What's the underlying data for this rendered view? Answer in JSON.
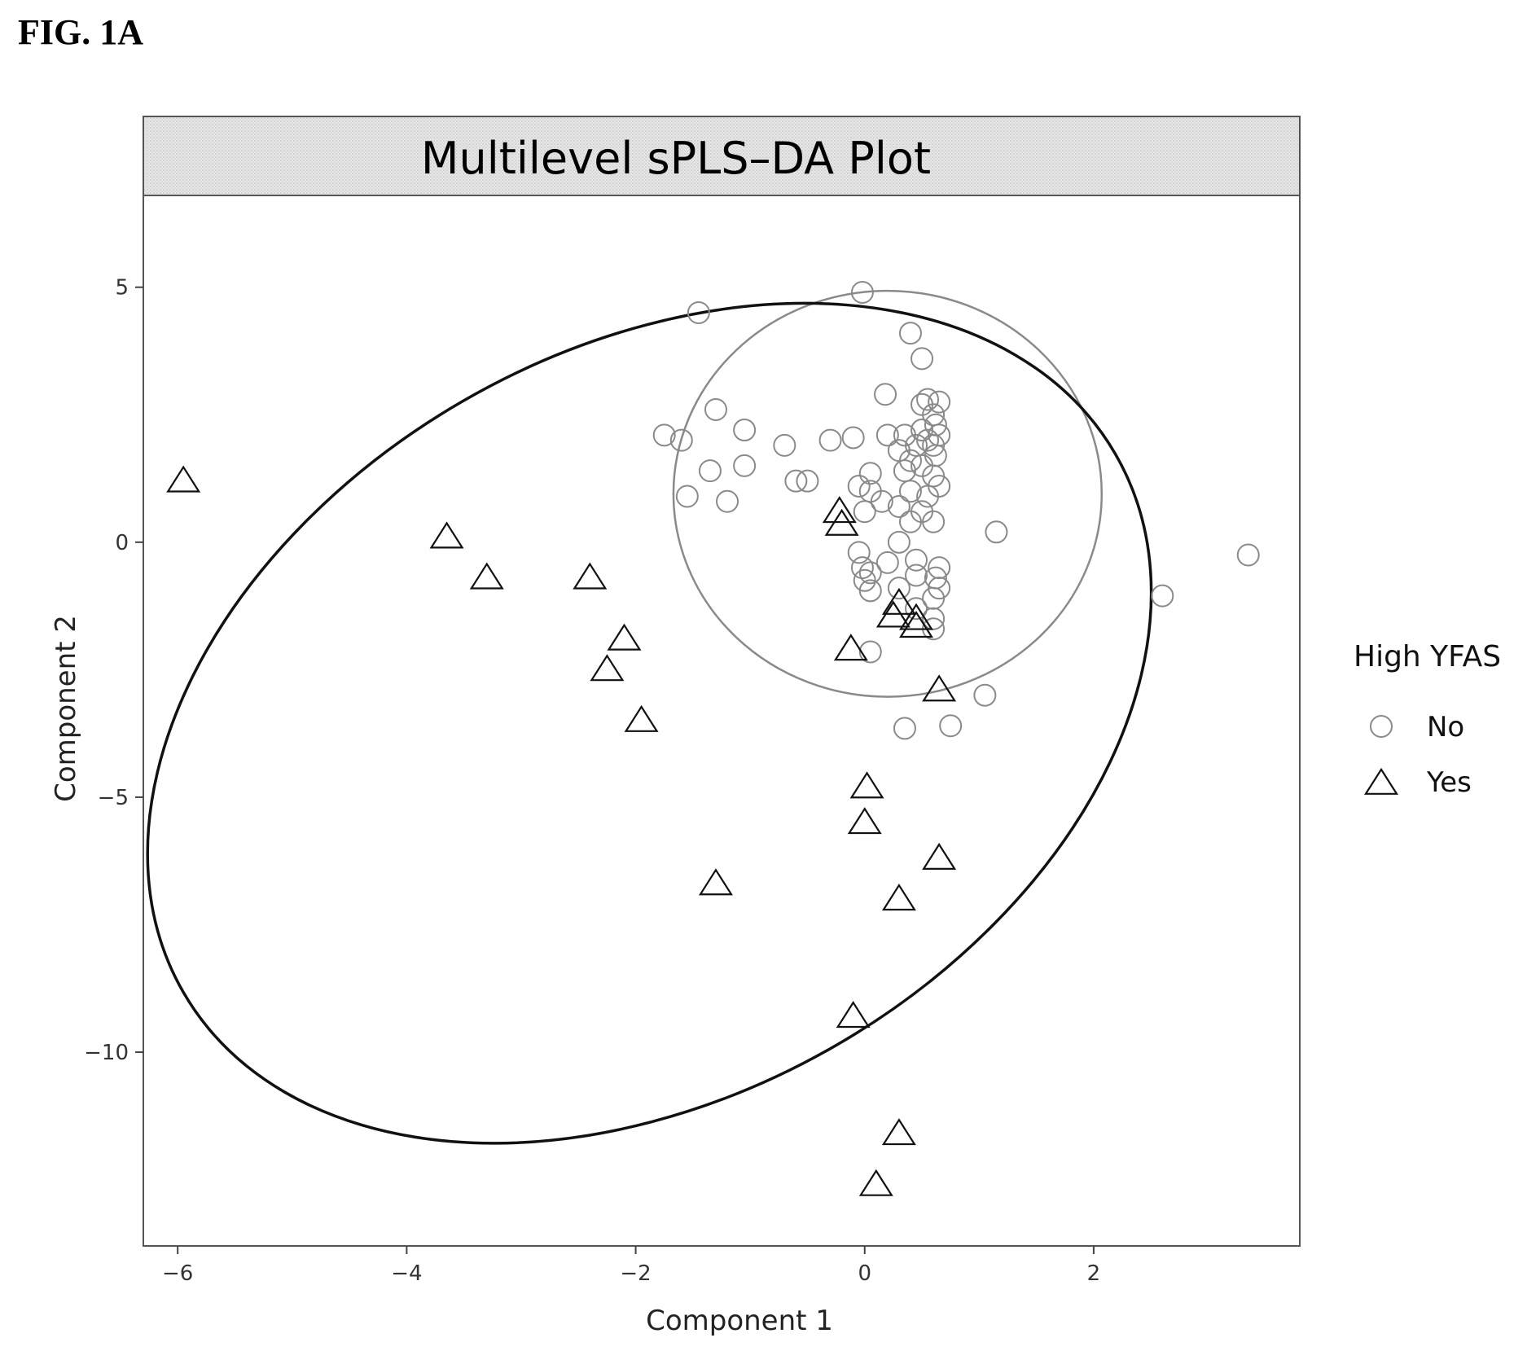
{
  "figure_label": "FIG. 1A",
  "chart_data": {
    "type": "scatter",
    "title": "Multilevel sPLS–DA Plot",
    "xlabel": "Component 1",
    "ylabel": "Component 2",
    "xlim": [
      -6.3,
      3.8
    ],
    "ylim": [
      -13.8,
      6.8
    ],
    "xticks": [
      -6,
      -4,
      -2,
      0,
      2
    ],
    "yticks": [
      5,
      0,
      -5,
      -10
    ],
    "xtick_labels": [
      "−6",
      "−4",
      "−2",
      "0",
      "2"
    ],
    "ytick_labels": [
      "5",
      "0",
      "−5",
      "−10"
    ],
    "grid": false,
    "legend": {
      "title": "High YFAS",
      "placement": "right"
    },
    "series": [
      {
        "name": "No",
        "marker": "circle",
        "color": "#8a8a8a",
        "points": [
          [
            -1.45,
            4.5
          ],
          [
            -0.02,
            4.9
          ],
          [
            0.4,
            4.1
          ],
          [
            0.5,
            3.6
          ],
          [
            0.18,
            2.9
          ],
          [
            0.55,
            2.8
          ],
          [
            0.65,
            2.75
          ],
          [
            0.5,
            2.7
          ],
          [
            0.6,
            2.5
          ],
          [
            0.62,
            2.3
          ],
          [
            0.65,
            2.1
          ],
          [
            0.6,
            1.9
          ],
          [
            0.62,
            1.7
          ],
          [
            0.5,
            2.2
          ],
          [
            0.55,
            2.0
          ],
          [
            0.45,
            1.9
          ],
          [
            0.35,
            2.1
          ],
          [
            0.2,
            2.1
          ],
          [
            0.3,
            1.8
          ],
          [
            0.4,
            1.6
          ],
          [
            0.35,
            1.4
          ],
          [
            0.5,
            1.5
          ],
          [
            0.6,
            1.3
          ],
          [
            0.65,
            1.1
          ],
          [
            0.4,
            1.0
          ],
          [
            0.55,
            0.9
          ],
          [
            0.3,
            0.7
          ],
          [
            0.5,
            0.6
          ],
          [
            0.6,
            0.4
          ],
          [
            0.4,
            0.4
          ],
          [
            0.15,
            0.8
          ],
          [
            0.05,
            1.0
          ],
          [
            -0.05,
            1.1
          ],
          [
            0.0,
            0.6
          ],
          [
            0.05,
            1.35
          ],
          [
            -0.3,
            2.0
          ],
          [
            -0.1,
            2.05
          ],
          [
            -0.7,
            1.9
          ],
          [
            -0.5,
            1.2
          ],
          [
            -0.6,
            1.2
          ],
          [
            -1.3,
            2.6
          ],
          [
            -1.05,
            2.2
          ],
          [
            -1.75,
            2.1
          ],
          [
            -1.6,
            2.0
          ],
          [
            -1.35,
            1.4
          ],
          [
            -1.05,
            1.5
          ],
          [
            -1.2,
            0.8
          ],
          [
            -1.55,
            0.9
          ],
          [
            0.3,
            0.0
          ],
          [
            -0.05,
            -0.2
          ],
          [
            0.2,
            -0.4
          ],
          [
            -0.02,
            -0.5
          ],
          [
            0.45,
            -0.35
          ],
          [
            0.05,
            -0.6
          ],
          [
            0.45,
            -0.65
          ],
          [
            0.65,
            -0.5
          ],
          [
            0.62,
            -0.7
          ],
          [
            0.65,
            -0.9
          ],
          [
            0.6,
            -1.1
          ],
          [
            0.05,
            -0.95
          ],
          [
            0.0,
            -0.75
          ],
          [
            0.3,
            -0.9
          ],
          [
            0.45,
            -1.3
          ],
          [
            0.6,
            -1.5
          ],
          [
            0.6,
            -1.7
          ],
          [
            0.05,
            -2.15
          ],
          [
            0.35,
            -3.65
          ],
          [
            0.75,
            -3.6
          ],
          [
            1.05,
            -3.0
          ],
          [
            1.15,
            0.2
          ],
          [
            2.6,
            -1.05
          ],
          [
            3.35,
            -0.25
          ]
        ]
      },
      {
        "name": "Yes",
        "marker": "triangle",
        "color": "#111111",
        "points": [
          [
            -5.95,
            1.2
          ],
          [
            -3.65,
            0.1
          ],
          [
            -3.3,
            -0.7
          ],
          [
            -2.4,
            -0.7
          ],
          [
            -2.1,
            -1.9
          ],
          [
            -2.25,
            -2.5
          ],
          [
            -1.95,
            -3.5
          ],
          [
            -1.3,
            -6.7
          ],
          [
            -0.22,
            0.6
          ],
          [
            -0.2,
            0.35
          ],
          [
            0.3,
            -1.2
          ],
          [
            0.25,
            -1.45
          ],
          [
            0.45,
            -1.5
          ],
          [
            0.45,
            -1.65
          ],
          [
            -0.12,
            -2.1
          ],
          [
            0.65,
            -2.9
          ],
          [
            0.02,
            -4.8
          ],
          [
            0.0,
            -5.5
          ],
          [
            0.65,
            -6.2
          ],
          [
            0.3,
            -7.0
          ],
          [
            -0.1,
            -9.3
          ],
          [
            0.3,
            -11.6
          ],
          [
            0.1,
            -12.6
          ]
        ]
      }
    ],
    "ellipses": [
      {
        "series": "No",
        "center": [
          0.2,
          0.95
        ],
        "rx": 1.87,
        "ry": 3.98,
        "angle_deg": 0,
        "color": "#8a8a8a"
      },
      {
        "series": "Yes",
        "center": [
          -1.88,
          -3.55
        ],
        "rx": 4.7,
        "ry": 7.3,
        "angle_deg": -30,
        "color": "#111111"
      }
    ]
  }
}
